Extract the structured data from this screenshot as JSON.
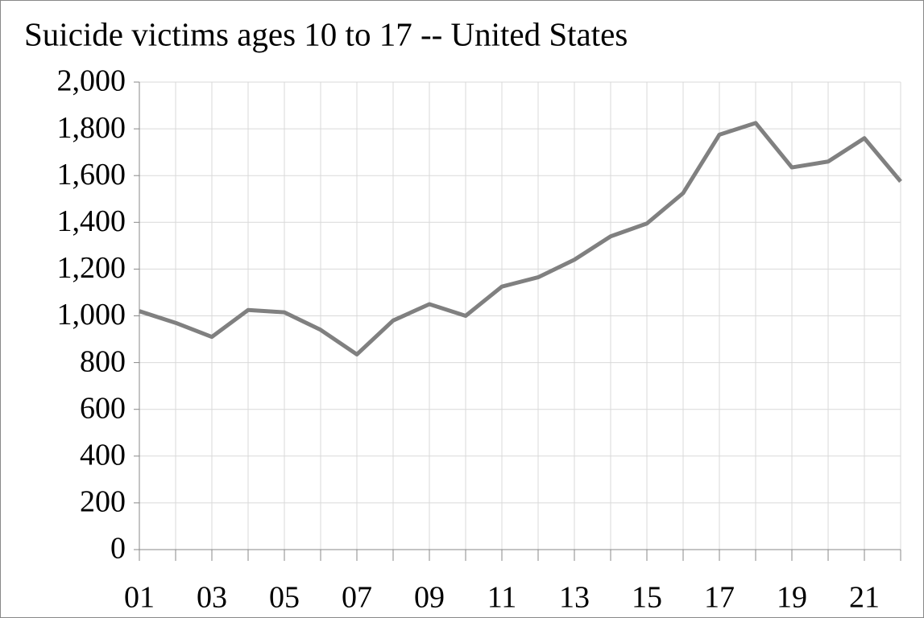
{
  "chart_data": {
    "type": "line",
    "title": "Suicide victims ages 10 to 17 -- United States",
    "categories": [
      "01",
      null,
      "03",
      null,
      "05",
      null,
      "07",
      null,
      "09",
      null,
      "11",
      null,
      "13",
      null,
      "15",
      null,
      "17",
      null,
      "19",
      null,
      "21",
      null
    ],
    "values": [
      1020,
      970,
      910,
      1025,
      1015,
      940,
      835,
      980,
      1050,
      1000,
      1125,
      1165,
      1240,
      1340,
      1395,
      1525,
      1775,
      1825,
      1635,
      1660,
      1760,
      1575
    ],
    "color": "#808080",
    "ylim": [
      0,
      2000
    ],
    "yticks": [
      0,
      200,
      400,
      600,
      800,
      {
        "value": 1000,
        "label": "1,000"
      },
      {
        "value": 1200,
        "label": "1,200"
      },
      {
        "value": 1400,
        "label": "1,400"
      },
      {
        "value": 1600,
        "label": "1,600"
      },
      {
        "value": 1800,
        "label": "1,800"
      },
      {
        "value": 2000,
        "label": "2,000"
      }
    ],
    "grid": true
  }
}
